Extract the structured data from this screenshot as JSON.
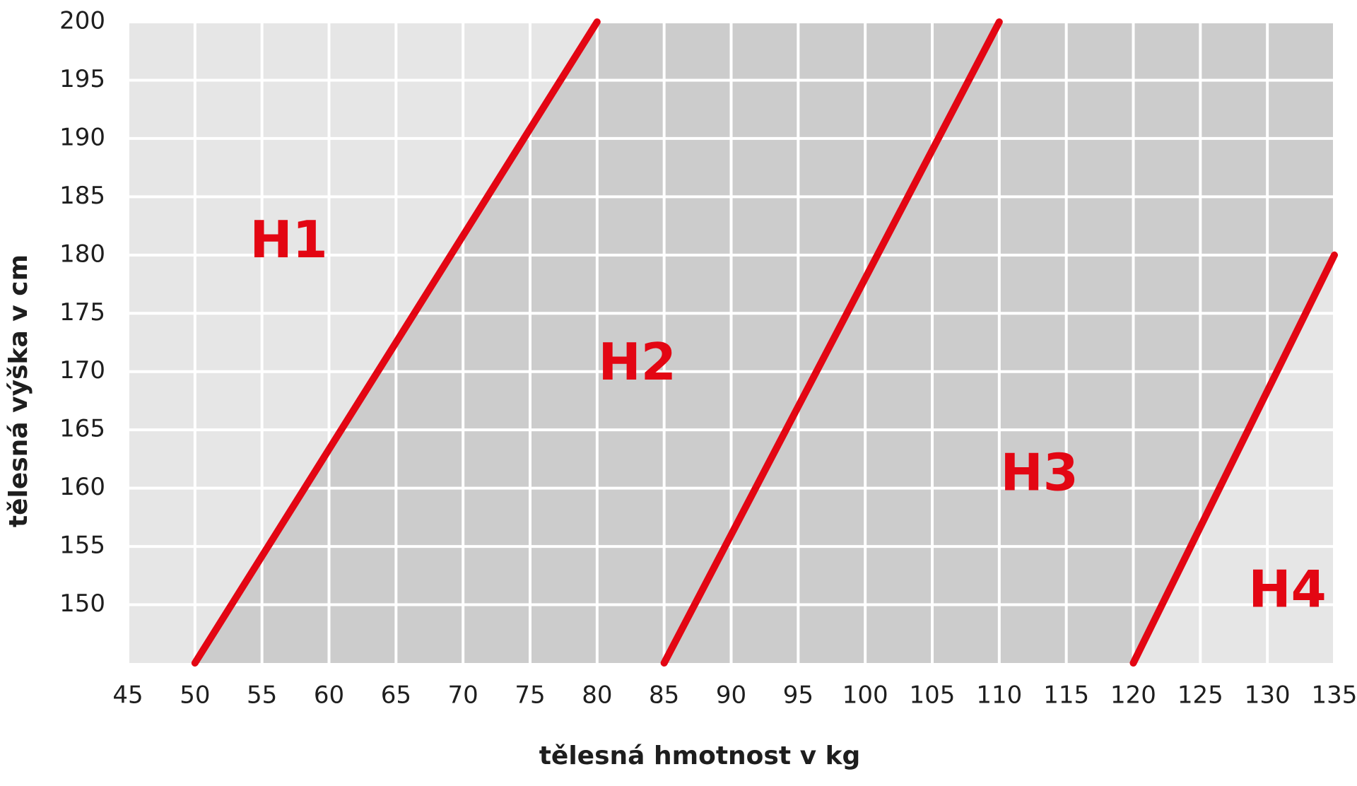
{
  "chart_data": {
    "type": "line",
    "x_label": "tělesná hmotnost v kg",
    "y_label": "tělesná výška v cm",
    "xlim": [
      45,
      135
    ],
    "xticks": [
      45,
      50,
      55,
      60,
      65,
      70,
      75,
      80,
      85,
      90,
      95,
      100,
      105,
      110,
      115,
      120,
      125,
      130,
      135
    ],
    "ylim": [
      145,
      200
    ],
    "yticks": [
      150,
      155,
      160,
      165,
      170,
      175,
      180,
      185,
      190,
      195,
      200
    ],
    "grid": true,
    "series": [
      {
        "color": "#e30613",
        "x": [
          50,
          80
        ],
        "values": [
          145,
          200
        ]
      },
      {
        "color": "#e30613",
        "x": [
          85,
          110
        ],
        "values": [
          145,
          200
        ]
      },
      {
        "color": "#e30613",
        "x": [
          120,
          135
        ],
        "values": [
          145,
          180
        ]
      }
    ],
    "annotations": [
      {
        "text": "H1",
        "x": 57,
        "y": 181
      },
      {
        "text": "H2",
        "x": 83,
        "y": 170.5
      },
      {
        "text": "H3",
        "x": 113,
        "y": 161
      },
      {
        "text": "H4",
        "x": 131.5,
        "y": 151
      }
    ]
  }
}
